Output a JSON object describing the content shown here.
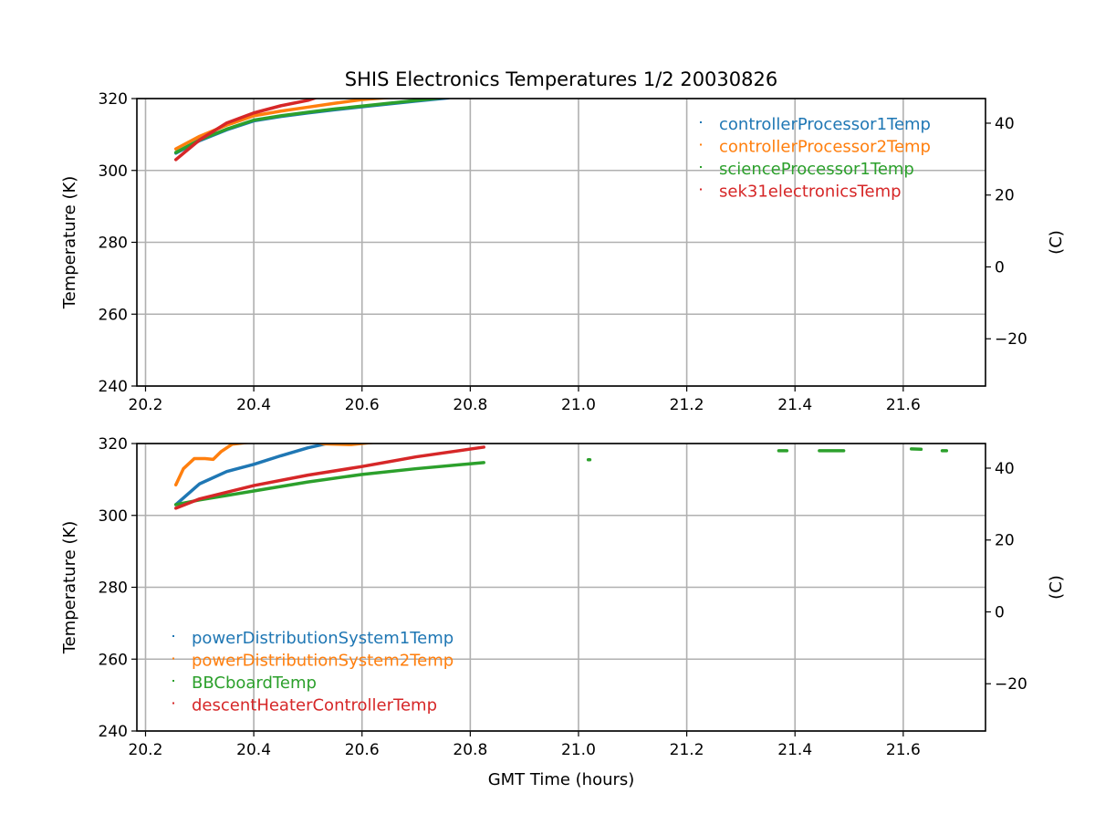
{
  "chart_data": [
    {
      "type": "line",
      "title": "SHIS Electronics Temperatures 1/2 20030826",
      "xlabel": "",
      "ylabel": "Temperature (K)",
      "ylabel_right": "(C)",
      "xlim": [
        20.184,
        21.752
      ],
      "ylim": [
        240,
        320
      ],
      "xticks": [
        20.2,
        20.4,
        20.6,
        20.8,
        21.0,
        21.2,
        21.4,
        21.6
      ],
      "xtick_labels": [
        "20.2",
        "20.4",
        "20.6",
        "20.8",
        "21.0",
        "21.2",
        "21.4",
        "21.6"
      ],
      "yticks": [
        240,
        260,
        280,
        300,
        320
      ],
      "yticks_right": [
        -20,
        0,
        20,
        40
      ],
      "yticks_right_labels": [
        "−20",
        "0",
        "20",
        "40"
      ],
      "grid": true,
      "legend_position": "top-right",
      "series": [
        {
          "name": "controllerProcessor1Temp",
          "color": "#1f77b4",
          "x": [
            20.256,
            20.3,
            20.35,
            20.4,
            20.45,
            20.5,
            20.55,
            20.6,
            20.65,
            20.7,
            20.76
          ],
          "y": [
            304.8,
            308.3,
            311.3,
            313.8,
            315.0,
            316.0,
            316.9,
            317.7,
            318.5,
            319.3,
            320.2
          ]
        },
        {
          "name": "controllerProcessor2Temp",
          "color": "#ff7f0e",
          "x": [
            20.256,
            20.3,
            20.35,
            20.4,
            20.45,
            20.5,
            20.55,
            20.6,
            20.66
          ],
          "y": [
            306.0,
            309.5,
            312.6,
            315.2,
            316.5,
            317.6,
            318.7,
            319.7,
            320.4
          ]
        },
        {
          "name": "scienceProcessor1Temp",
          "color": "#2ca02c",
          "x": [
            20.256,
            20.3,
            20.35,
            20.4,
            20.45,
            20.5,
            20.55,
            20.6,
            20.65,
            20.7,
            20.76
          ],
          "y": [
            305.0,
            308.5,
            311.5,
            314.0,
            315.2,
            316.2,
            317.1,
            317.9,
            318.7,
            319.5,
            320.4
          ]
        },
        {
          "name": "sek31electronicsTemp",
          "color": "#d62728",
          "x": [
            20.256,
            20.3,
            20.35,
            20.4,
            20.45,
            20.5,
            20.52
          ],
          "y": [
            303.0,
            308.5,
            313.2,
            316.0,
            318.0,
            319.5,
            320.5
          ]
        }
      ]
    },
    {
      "type": "line",
      "title": "",
      "xlabel": "GMT Time (hours)",
      "ylabel": "Temperature (K)",
      "ylabel_right": "(C)",
      "xlim": [
        20.184,
        21.752
      ],
      "ylim": [
        240,
        320
      ],
      "xticks": [
        20.2,
        20.4,
        20.6,
        20.8,
        21.0,
        21.2,
        21.4,
        21.6
      ],
      "xtick_labels": [
        "20.2",
        "20.4",
        "20.6",
        "20.8",
        "21.0",
        "21.2",
        "21.4",
        "21.6"
      ],
      "yticks": [
        240,
        260,
        280,
        300,
        320
      ],
      "yticks_right": [
        -20,
        0,
        20,
        40
      ],
      "yticks_right_labels": [
        "−20",
        "0",
        "20",
        "40"
      ],
      "grid": true,
      "legend_position": "bottom-left",
      "series": [
        {
          "name": "powerDistributionSystem1Temp",
          "color": "#1f77b4",
          "x": [
            20.256,
            20.3,
            20.35,
            20.4,
            20.45,
            20.5,
            20.55
          ],
          "y": [
            303.0,
            308.8,
            312.2,
            314.2,
            316.6,
            318.8,
            320.5
          ]
        },
        {
          "name": "powerDistributionSystem2Temp",
          "color": "#ff7f0e",
          "x": [
            20.256,
            20.27,
            20.29,
            20.31,
            20.325,
            20.34,
            20.36,
            20.4,
            20.5,
            20.53,
            20.58,
            20.62
          ],
          "y": [
            308.5,
            313.0,
            315.8,
            315.8,
            315.6,
            317.8,
            319.8,
            320.5,
            321.0,
            319.9,
            319.7,
            320.3
          ]
        },
        {
          "name": "BBCboardTemp",
          "color": "#2ca02c",
          "x": [
            20.256,
            20.3,
            20.4,
            20.5,
            20.6,
            20.7,
            20.825
          ],
          "y": [
            303.0,
            304.3,
            306.8,
            309.3,
            311.4,
            313.0,
            314.7
          ],
          "segments": [
            {
              "x": [
                21.018,
                21.021
              ],
              "y": [
                315.5,
                315.5
              ]
            },
            {
              "x": [
                21.37,
                21.385
              ],
              "y": [
                318.0,
                318.0
              ]
            },
            {
              "x": [
                21.445,
                21.49
              ],
              "y": [
                318.0,
                318.0
              ]
            },
            {
              "x": [
                21.615,
                21.633
              ],
              "y": [
                318.5,
                318.4
              ]
            },
            {
              "x": [
                21.672,
                21.68
              ],
              "y": [
                318.0,
                318.0
              ]
            }
          ]
        },
        {
          "name": "descentHeaterControllerTemp",
          "color": "#d62728",
          "x": [
            20.256,
            20.3,
            20.4,
            20.5,
            20.6,
            20.7,
            20.825
          ],
          "y": [
            302.0,
            304.6,
            308.3,
            311.2,
            313.6,
            316.3,
            319.0
          ]
        }
      ]
    }
  ]
}
